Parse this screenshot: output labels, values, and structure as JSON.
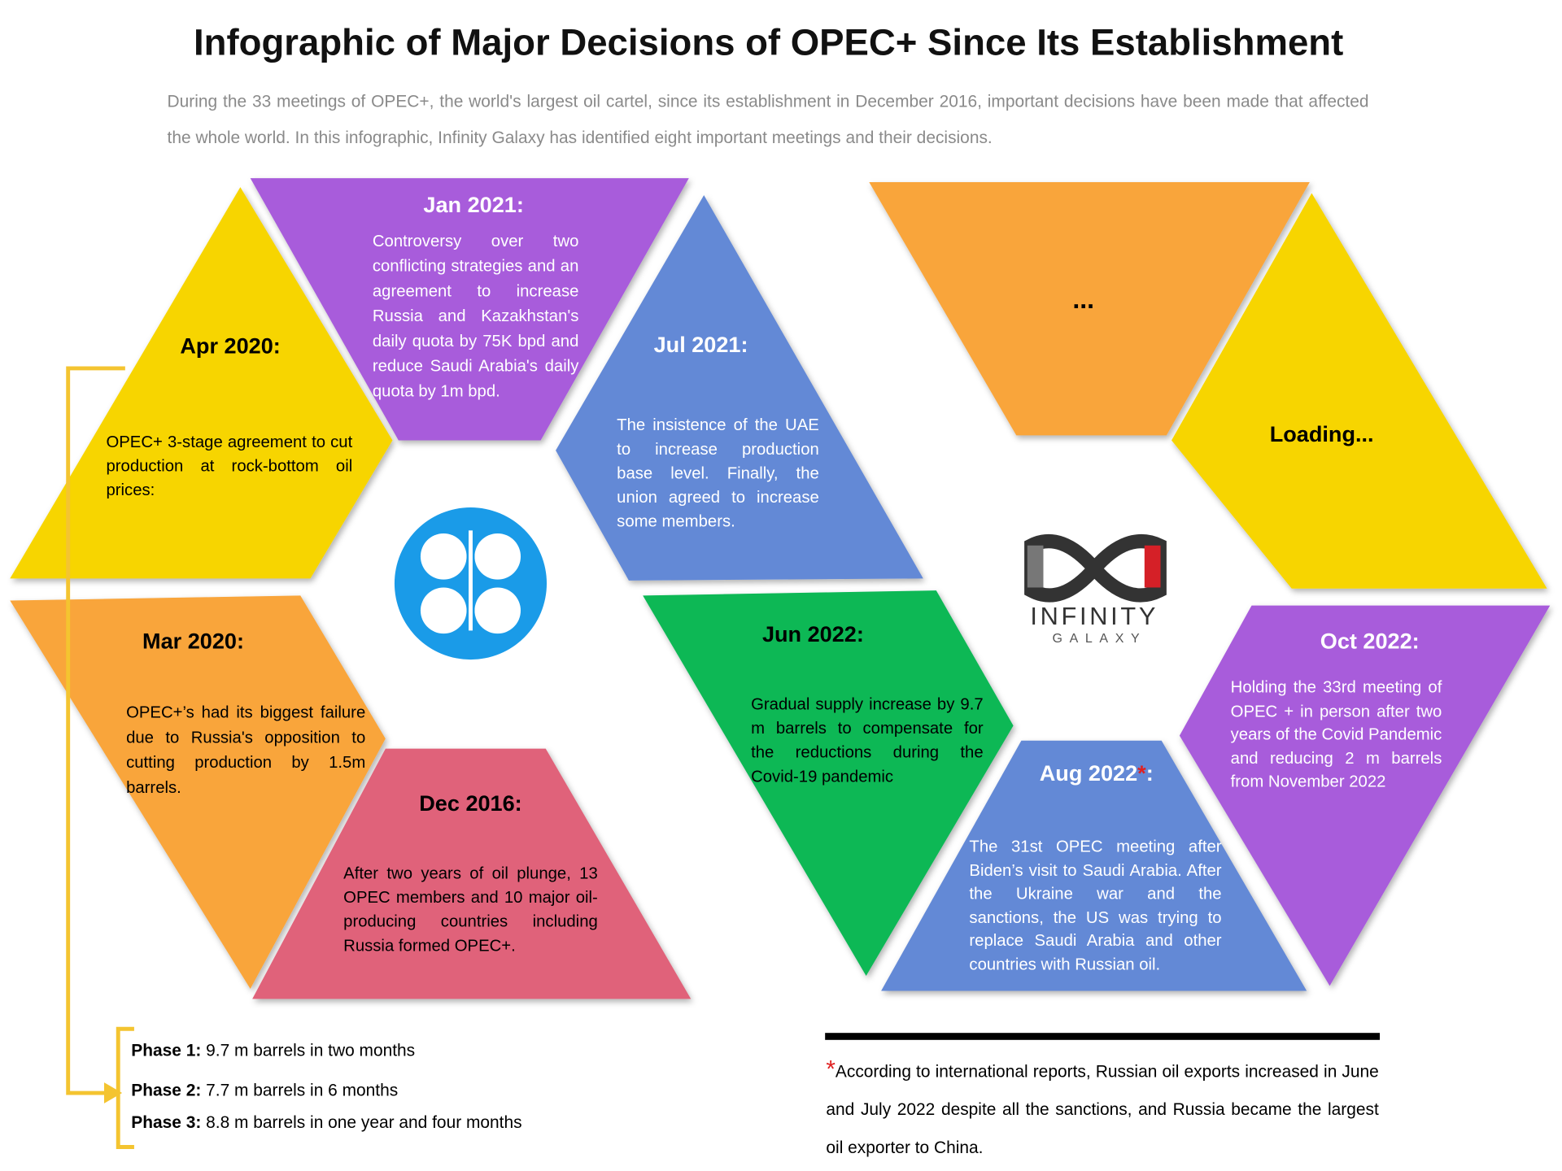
{
  "header": {
    "title": "Infographic of Major Decisions of OPEC+ Since Its Establishment",
    "subtitle": "During the 33 meetings of OPEC+, the world's largest oil cartel, since its establishment in December 2016, important decisions have been made that affected the whole world. In this infographic, Infinity Galaxy has identified eight important meetings and their decisions."
  },
  "items": [
    {
      "date": "Apr 2020:",
      "text": "OPEC+ 3-stage agreement to cut production at rock-bottom oil prices:"
    },
    {
      "date": "Jan 2021:",
      "text": "Controversy over two conflicting strategies and an agreement to increase Russia and Kazakhstan's daily quota by 75K bpd and reduce Saudi Arabia's daily quota by 1m bpd."
    },
    {
      "date": "Jul 2021:",
      "text": "The insistence of the UAE to increase production base level. Finally, the union agreed to increase some members."
    },
    {
      "date": "Mar 2020:",
      "text": "OPEC+’s had its biggest failure due to Russia's opposition to cutting production by 1.5m barrels."
    },
    {
      "date": "Dec 2016:",
      "text": "After two years of oil plunge, 13 OPEC members and 10 major oil-producing countries including Russia formed OPEC+."
    },
    {
      "date": "Jun 2022:",
      "text": "Gradual supply increase by 9.7 m barrels to compensate for the reductions during the Covid-19 pandemic"
    },
    {
      "date": "Aug 2022",
      "mark": "*",
      "date_end": ":",
      "text": "The 31st OPEC meeting after Biden’s visit to Saudi Arabia. After the Ukraine war and the sanctions, the US was trying to replace Saudi Arabia and other countries with Russian oil."
    },
    {
      "date": "Oct 2022:",
      "text": "Holding the 33rd meeting of OPEC + in person after two years of the Covid Pandemic and reducing 2 m barrels from November 2022"
    }
  ],
  "placeholders": {
    "ellipsis": "...",
    "loading": "Loading..."
  },
  "logo": {
    "name": "INFINITY",
    "sub": "GALAXY"
  },
  "phases": [
    {
      "label": "Phase 1:",
      "text": "9.7 m barrels in two months"
    },
    {
      "label": "Phase 2:",
      "text": "7.7 m barrels in 6 months"
    },
    {
      "label": "Phase 3:",
      "text": "8.8 m barrels in one year and four months"
    }
  ],
  "footnote": {
    "mark": "*",
    "text": "According to international reports, Russian oil exports increased in June and July 2022 despite all the sanctions, and Russia became the largest oil exporter to China."
  }
}
